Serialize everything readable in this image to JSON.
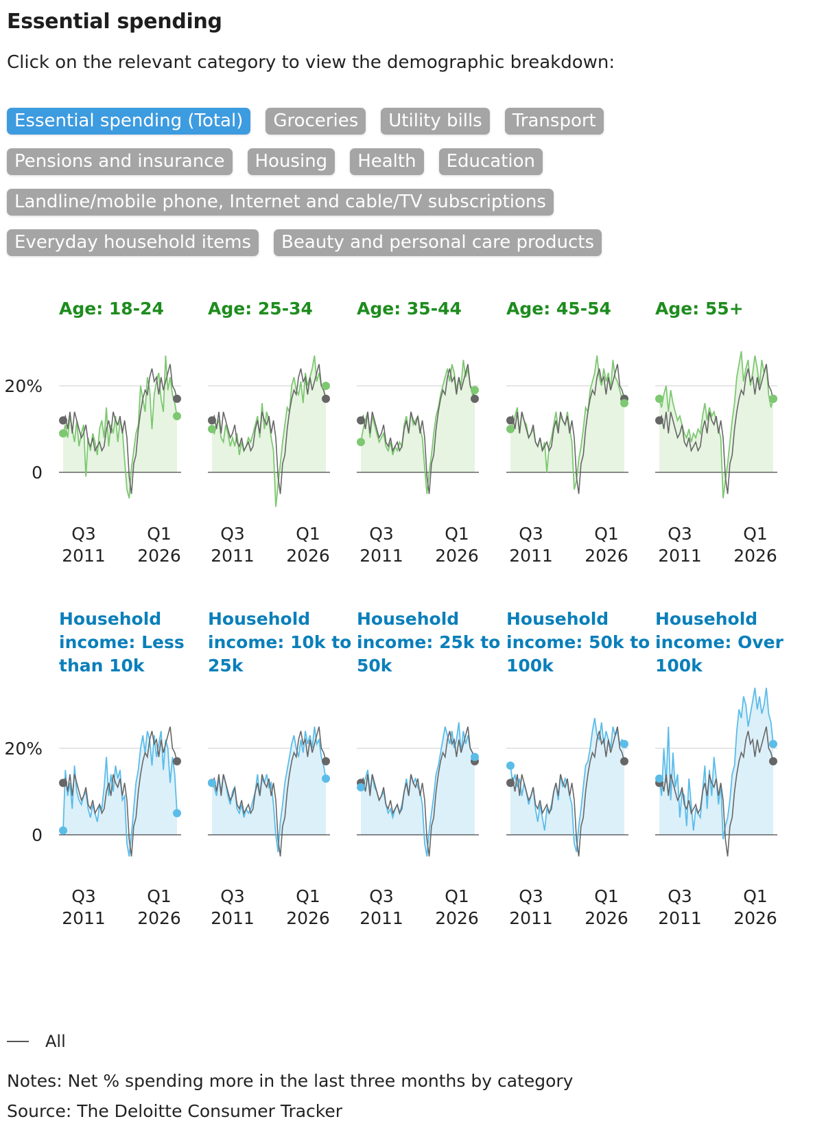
{
  "title": "Essential spending",
  "subtitle": "Click on the relevant category to view the demographic breakdown:",
  "buttons": [
    {
      "label": "Essential spending (Total)",
      "active": true
    },
    {
      "label": "Groceries",
      "active": false
    },
    {
      "label": "Utility bills",
      "active": false
    },
    {
      "label": "Transport",
      "active": false
    },
    {
      "label": "Pensions and insurance",
      "active": false
    },
    {
      "label": "Housing",
      "active": false
    },
    {
      "label": "Health",
      "active": false
    },
    {
      "label": "Education",
      "active": false
    },
    {
      "label": "Landline/mobile phone, Internet and cable/TV subscriptions",
      "active": false
    },
    {
      "label": "Everyday household items",
      "active": false
    },
    {
      "label": "Beauty and personal care products",
      "active": false
    }
  ],
  "button_rows": [
    [
      0,
      1,
      2,
      3
    ],
    [
      4,
      5,
      6,
      7
    ],
    [
      8
    ],
    [
      9,
      10
    ]
  ],
  "legend": {
    "label": "All"
  },
  "notes": "Notes: Net % spending more in the last three months by category",
  "source": "Source: The Deloitte Consumer Tracker",
  "colors": {
    "all": "#666666",
    "age_line": "#7dc871",
    "age_fill": "#e6f4e1",
    "age_title": "#1e8c1e",
    "age_end_dot": "#4fa04a",
    "income_line": "#5bbce8",
    "income_fill": "#dcf0fa",
    "income_title": "#0b7fba",
    "grid": "#cccccc",
    "axis": "#444444"
  },
  "chart_data": {
    "type": "line",
    "y_unit": "%",
    "y_ticks": [
      "0",
      "20%"
    ],
    "y_tick_values": [
      0,
      20
    ],
    "ylim": [
      -8,
      32
    ],
    "x_ticks": [
      [
        "Q3",
        "2011"
      ],
      [
        "Q1",
        "2026"
      ]
    ],
    "x_range": [
      "Q3 2011",
      "Q1 2026"
    ],
    "grid": "horizontal",
    "legend_placement": "bottom-left",
    "all_series": {
      "name": "All",
      "values": [
        12,
        13,
        10,
        14,
        9,
        14,
        12,
        10,
        8,
        9,
        11,
        7,
        6,
        8,
        5,
        6,
        7,
        5,
        6,
        10,
        12,
        9,
        14,
        12,
        11,
        13,
        9,
        12,
        8,
        -1,
        -5,
        2,
        4,
        10,
        14,
        17,
        19,
        18,
        22,
        24,
        21,
        22,
        18,
        22,
        19,
        21,
        23,
        25,
        20,
        19,
        17
      ]
    },
    "panel_groups": [
      {
        "group": "age",
        "panels": [
          {
            "title": "Age: 18-24",
            "values": [
              9,
              11,
              8,
              13,
              10,
              7,
              12,
              6,
              9,
              11,
              -1,
              8,
              5,
              9,
              7,
              4,
              10,
              12,
              8,
              15,
              6,
              11,
              9,
              13,
              7,
              12,
              10,
              3,
              -4,
              -6,
              1,
              5,
              9,
              11,
              20,
              17,
              14,
              22,
              19,
              10,
              18,
              21,
              23,
              17,
              14,
              27,
              19,
              22,
              18,
              16,
              13
            ]
          },
          {
            "title": "Age: 25-34",
            "values": [
              10,
              9,
              11,
              12,
              8,
              7,
              11,
              9,
              6,
              8,
              6,
              9,
              4,
              7,
              5,
              6,
              8,
              7,
              9,
              11,
              13,
              8,
              16,
              10,
              14,
              12,
              8,
              5,
              -8,
              -3,
              2,
              7,
              11,
              15,
              14,
              20,
              22,
              19,
              18,
              21,
              16,
              23,
              20,
              22,
              24,
              27,
              21,
              23,
              20,
              19,
              20
            ]
          },
          {
            "title": "Age: 35-44",
            "values": [
              7,
              10,
              12,
              14,
              8,
              13,
              11,
              9,
              7,
              8,
              9,
              6,
              5,
              7,
              4,
              6,
              5,
              7,
              6,
              11,
              13,
              9,
              14,
              11,
              12,
              13,
              10,
              8,
              1,
              -5,
              0,
              4,
              9,
              13,
              15,
              18,
              20,
              22,
              24,
              21,
              25,
              23,
              19,
              22,
              20,
              26,
              22,
              24,
              20,
              18,
              19
            ]
          },
          {
            "title": "Age: 45-54",
            "values": [
              10,
              11,
              13,
              15,
              9,
              14,
              12,
              11,
              8,
              9,
              10,
              7,
              6,
              8,
              5,
              7,
              0,
              6,
              8,
              11,
              14,
              10,
              13,
              12,
              11,
              14,
              10,
              7,
              -4,
              -2,
              3,
              6,
              10,
              15,
              14,
              19,
              21,
              23,
              27,
              22,
              20,
              24,
              21,
              23,
              19,
              26,
              22,
              21,
              19,
              17,
              16
            ]
          },
          {
            "title": "Age: 55+",
            "values": [
              17,
              15,
              18,
              20,
              14,
              19,
              16,
              14,
              12,
              13,
              11,
              9,
              8,
              10,
              7,
              9,
              8,
              10,
              9,
              13,
              16,
              12,
              15,
              13,
              14,
              12,
              10,
              8,
              -6,
              -2,
              2,
              7,
              12,
              16,
              22,
              25,
              28,
              21,
              24,
              26,
              20,
              23,
              27,
              24,
              20,
              26,
              23,
              25,
              18,
              15,
              17
            ]
          }
        ]
      },
      {
        "group": "income",
        "panels": [
          {
            "title": "Household income: Less than 10k",
            "values": [
              1,
              15,
              9,
              12,
              6,
              16,
              10,
              8,
              7,
              9,
              10,
              6,
              4,
              7,
              5,
              3,
              7,
              6,
              11,
              18,
              9,
              14,
              10,
              16,
              13,
              15,
              8,
              9,
              -2,
              -5,
              0,
              6,
              12,
              15,
              20,
              23,
              19,
              24,
              22,
              16,
              23,
              18,
              21,
              24,
              15,
              22,
              20,
              12,
              18,
              14,
              5
            ]
          },
          {
            "title": "Household income: 10k to 25k",
            "values": [
              12,
              11,
              9,
              13,
              10,
              14,
              12,
              9,
              7,
              10,
              11,
              6,
              5,
              7,
              4,
              6,
              5,
              6,
              8,
              10,
              14,
              9,
              13,
              12,
              14,
              11,
              12,
              7,
              0,
              -4,
              3,
              7,
              12,
              15,
              18,
              21,
              23,
              20,
              18,
              22,
              19,
              24,
              21,
              23,
              20,
              25,
              21,
              22,
              18,
              16,
              13
            ]
          },
          {
            "title": "Household income: 25k to 50k",
            "values": [
              11,
              12,
              13,
              15,
              10,
              14,
              11,
              10,
              8,
              9,
              10,
              7,
              5,
              6,
              4,
              6,
              7,
              5,
              7,
              10,
              13,
              9,
              14,
              12,
              13,
              11,
              10,
              7,
              -2,
              -5,
              1,
              5,
              9,
              14,
              16,
              19,
              22,
              25,
              23,
              21,
              24,
              20,
              22,
              26,
              19,
              24,
              21,
              23,
              20,
              19,
              18
            ]
          },
          {
            "title": "Household income: 50k to 100k",
            "values": [
              16,
              12,
              14,
              11,
              13,
              9,
              12,
              10,
              7,
              9,
              11,
              6,
              3,
              7,
              4,
              1,
              6,
              5,
              7,
              10,
              12,
              8,
              14,
              11,
              13,
              12,
              9,
              7,
              -2,
              -4,
              2,
              6,
              11,
              16,
              17,
              20,
              24,
              27,
              23,
              22,
              26,
              21,
              24,
              22,
              20,
              25,
              23,
              24,
              21,
              22,
              21
            ]
          },
          {
            "title": "Household income: Over 100k",
            "values": [
              13,
              9,
              20,
              12,
              25,
              8,
              19,
              11,
              14,
              4,
              10,
              9,
              2,
              13,
              7,
              1,
              6,
              5,
              4,
              10,
              16,
              6,
              15,
              9,
              18,
              13,
              7,
              12,
              -1,
              2,
              4,
              8,
              14,
              16,
              24,
              29,
              27,
              32,
              30,
              25,
              28,
              31,
              34,
              29,
              32,
              28,
              30,
              34,
              28,
              26,
              21
            ]
          }
        ]
      }
    ]
  }
}
